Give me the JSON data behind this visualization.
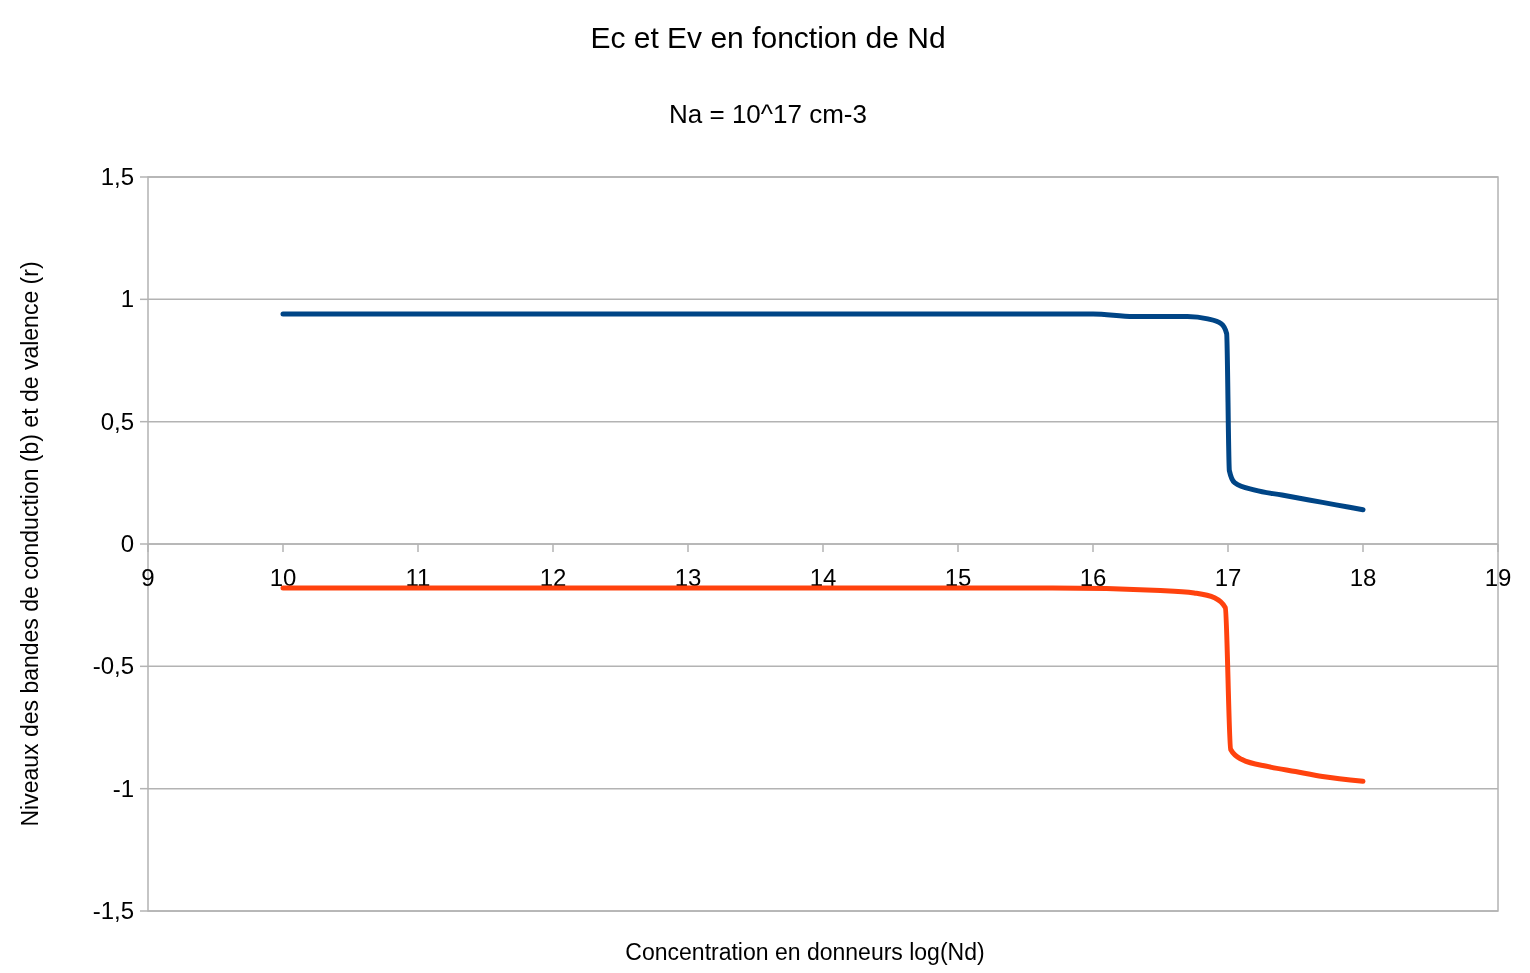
{
  "chart_data": {
    "type": "line",
    "title": "Ec et Ev en fonction de Nd",
    "subtitle": "Na = 10^17 cm-3",
    "xlabel": "Concentration en donneurs log(Nd)",
    "ylabel": "Niveaux des bandes de conduction (b) et de valence (r)",
    "xlim": [
      9,
      19
    ],
    "xticks": [
      9,
      10,
      11,
      12,
      13,
      14,
      15,
      16,
      17,
      18,
      19
    ],
    "ylim": [
      -1.5,
      1.5
    ],
    "yticks": [
      {
        "value": -1.5,
        "label": "-1,5"
      },
      -1,
      {
        "value": -0.5,
        "label": "-0,5"
      },
      0,
      {
        "value": 0.5,
        "label": "0,5"
      },
      1,
      {
        "value": 1.5,
        "label": "1,5"
      }
    ],
    "grid": "y",
    "marker": "none",
    "line_style": "solid",
    "series": [
      {
        "color": "#004586",
        "x": [
          10,
          12,
          14,
          16,
          16.3,
          16.7,
          16.85,
          16.95,
          16.99,
          17.01,
          17.05,
          17.2,
          17.4,
          17.6,
          17.8,
          18
        ],
        "values": [
          0.94,
          0.94,
          0.94,
          0.94,
          0.93,
          0.93,
          0.92,
          0.9,
          0.86,
          0.3,
          0.25,
          0.22,
          0.2,
          0.18,
          0.16,
          0.14
        ]
      },
      {
        "color": "#ff420e",
        "x": [
          10,
          12,
          14,
          15.7,
          16.5,
          16.75,
          16.9,
          16.98,
          17.02,
          17.1,
          17.3,
          17.5,
          17.7,
          18
        ],
        "values": [
          -0.18,
          -0.18,
          -0.18,
          -0.18,
          -0.19,
          -0.2,
          -0.22,
          -0.26,
          -0.84,
          -0.88,
          -0.91,
          -0.93,
          -0.95,
          -0.97
        ]
      }
    ]
  }
}
